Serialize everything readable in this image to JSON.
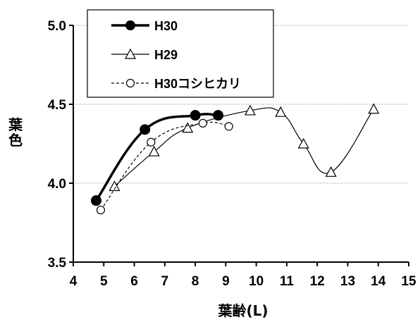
{
  "chart_data": {
    "type": "line",
    "title": "",
    "xlabel": "葉齢(L)",
    "ylabel": "葉色",
    "xlim": [
      4,
      15
    ],
    "ylim": [
      3.5,
      5.0
    ],
    "x_ticks": [
      "4",
      "5",
      "6",
      "7",
      "8",
      "9",
      "10",
      "11",
      "12",
      "13",
      "14",
      "15"
    ],
    "y_ticks": [
      "3.5",
      "4.0",
      "4.5",
      "5.0"
    ],
    "grid": "horizontal dotted",
    "legend_position": "top-left",
    "series": [
      {
        "name": "H30",
        "color": "#000000",
        "line_style": "solid-thick",
        "marker": "filled-circle",
        "points": [
          [
            4.75,
            3.89
          ],
          [
            6.35,
            4.34
          ],
          [
            8.0,
            4.43
          ],
          [
            8.75,
            4.43
          ]
        ]
      },
      {
        "name": "H29",
        "color": "#000000",
        "line_style": "solid-thin",
        "marker": "open-triangle",
        "points": [
          [
            5.35,
            3.98
          ],
          [
            6.65,
            4.2
          ],
          [
            7.75,
            4.35
          ],
          [
            9.8,
            4.46
          ],
          [
            10.8,
            4.45
          ],
          [
            11.55,
            4.25
          ],
          [
            12.45,
            4.07
          ],
          [
            13.85,
            4.47
          ]
        ]
      },
      {
        "name": "H30コシヒカリ",
        "color": "#000000",
        "line_style": "dashed",
        "marker": "open-circle",
        "points": [
          [
            4.9,
            3.83
          ],
          [
            6.55,
            4.26
          ],
          [
            8.25,
            4.38
          ],
          [
            9.1,
            4.36
          ]
        ]
      }
    ]
  }
}
